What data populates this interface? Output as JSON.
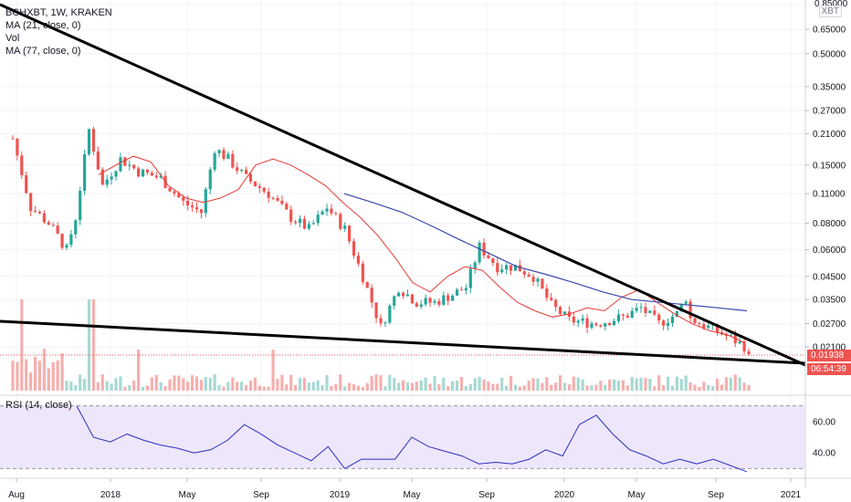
{
  "legend": {
    "symbol": "BCHXBT, 1W, KRAKEN",
    "ma1": "MA (21, close, 0)",
    "vol": "Vol",
    "ma2": "MA (77, close, 0)",
    "rsi": "RSI (14, close)"
  },
  "price_axis_unit": "XBT",
  "colors": {
    "up": "#26a69a",
    "down": "#ef5350",
    "ma_short": "#e53935",
    "ma_long": "#3949ab",
    "trendline": "#000000",
    "rsi_line": "#2a2ebf",
    "rsi_band": "#eee6fb",
    "badge_price": "#ef5350",
    "badge_timer": "#ef5350"
  },
  "chart_data": [
    {
      "type": "candlestick",
      "x_axis": {
        "ticks": [
          "Aug",
          "2018",
          "May",
          "Sep",
          "2019",
          "May",
          "Sep",
          "2020",
          "May",
          "Sep",
          "2021"
        ],
        "range": [
          "2017-08",
          "2021-01"
        ]
      },
      "y_axis": {
        "scale": "log",
        "ticks": [
          "0.85000",
          "0.65000",
          "0.50000",
          "0.35000",
          "0.27000",
          "0.21000",
          "0.15000",
          "0.11000",
          "0.08000",
          "0.06000",
          "0.04500",
          "0.03500",
          "0.02700",
          "0.02100"
        ]
      },
      "last_price": "0.01938",
      "countdown": "06:54:39",
      "ma_short": [
        0.135,
        0.15,
        0.165,
        0.155,
        0.12,
        0.105,
        0.1,
        0.105,
        0.115,
        0.15,
        0.16,
        0.15,
        0.135,
        0.12,
        0.1,
        0.085,
        0.07,
        0.055,
        0.042,
        0.038,
        0.045,
        0.05,
        0.048,
        0.04,
        0.034,
        0.031,
        0.029,
        0.03,
        0.032,
        0.031,
        0.036,
        0.039,
        0.034,
        0.03,
        0.027,
        0.025,
        0.024,
        0.022
      ],
      "ma_long": [
        0.11,
        0.1,
        0.09,
        0.078,
        0.067,
        0.058,
        0.05,
        0.046,
        0.042,
        0.038,
        0.035,
        0.034,
        0.033,
        0.032,
        0.031
      ],
      "trendlines": [
        {
          "name": "upper",
          "from": [
            0.0,
            0.85
          ],
          "to": [
            1.0,
            0.0195
          ]
        },
        {
          "name": "lower",
          "from": [
            0.0,
            0.027
          ],
          "to": [
            1.0,
            0.0195
          ]
        }
      ]
    },
    {
      "type": "bar",
      "name": "Vol"
    },
    {
      "type": "line",
      "name": "RSI (14, close)",
      "y_axis": {
        "ticks": [
          "60.00",
          "40.00"
        ],
        "band": [
          30,
          70
        ]
      },
      "values": [
        70,
        50,
        47,
        52,
        48,
        45,
        43,
        40,
        42,
        48,
        58,
        52,
        45,
        40,
        35,
        44,
        30,
        36,
        36,
        36,
        50,
        44,
        41,
        38,
        33,
        34,
        33,
        36,
        42,
        38,
        58,
        64,
        52,
        42,
        38,
        33,
        36,
        33,
        36,
        32,
        28
      ]
    }
  ]
}
